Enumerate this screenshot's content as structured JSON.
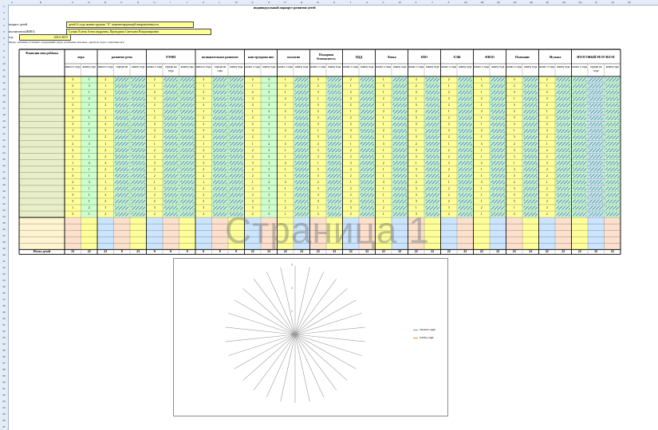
{
  "sheet": {
    "title": "индивидуальный маршрут развития детей",
    "group_label": "возраст детей",
    "group_value": "детей 4 года жизни группы \"А\" компенсирующей направленности",
    "teacher_label": "воспитатель(ФИО)",
    "teacher_value": "Сушко Елена Александровна, Прокудина Светлана Владимировна",
    "year_label": "год",
    "year_value": "2014-2015",
    "note": "Инды: значения условных сокращений: игры, различные игровые, одной из задач, сюжетные игр",
    "name_col_header": "Фамилия имя ребёнка",
    "total_label": "Итого детей",
    "watermark": "Страница 1"
  },
  "columns": [
    "A",
    "B",
    "C",
    "D",
    "E",
    "F",
    "G",
    "H",
    "I",
    "J",
    "K",
    "L",
    "M",
    "N",
    "O",
    "P",
    "Q",
    "R",
    "S",
    "T",
    "U",
    "V",
    "W",
    "X",
    "Y",
    "Z",
    "AA",
    "AB",
    "AC",
    "AD",
    "AE",
    "AF",
    "AG",
    "AH",
    "AI",
    "AJ",
    "AK"
  ],
  "rows": [
    "1",
    "2",
    "3",
    "4",
    "5",
    "6",
    "7",
    "8",
    "9",
    "10",
    "11",
    "12",
    "13",
    "14",
    "15",
    "16",
    "17",
    "18",
    "19",
    "20",
    "21",
    "22",
    "23",
    "24",
    "25",
    "26",
    "27",
    "28",
    "29",
    "30",
    "31",
    "32",
    "33",
    "34",
    "35",
    "36",
    "37",
    "38",
    "39",
    "40",
    "41",
    "42",
    "43",
    "44",
    "45",
    "46",
    "47",
    "48",
    "49",
    "50",
    "51",
    "52",
    "53",
    "54",
    "55",
    "56",
    "57",
    "58",
    "59",
    "60",
    "61",
    "62",
    "63",
    "64",
    "65",
    "66",
    "67"
  ],
  "groups": [
    {
      "label": "игра",
      "subs": [
        "начал о года",
        "конец года"
      ]
    },
    {
      "label": "развитие речи",
      "subs": [
        "начал о года",
        "середи на",
        "конец года"
      ]
    },
    {
      "label": "РЭМП",
      "subs": [
        "начал о года",
        "середи на года",
        "конец года"
      ]
    },
    {
      "label": "познавательное развитие",
      "subs": [
        "начал о года",
        "середи на года",
        "конец года"
      ]
    },
    {
      "label": "конструирова ние",
      "subs": [
        "начал о года",
        "конец года"
      ]
    },
    {
      "label": "экология",
      "subs": [
        "начал о года",
        "конец года"
      ]
    },
    {
      "label": "Пожарная безопасность",
      "subs": [
        "начал о года",
        "конец года"
      ]
    },
    {
      "label": "ПДД",
      "subs": [
        "начал о года",
        "конец года"
      ]
    },
    {
      "label": "Лепка",
      "subs": [
        "начал о года",
        "конец года"
      ]
    },
    {
      "label": "ИЗО",
      "subs": [
        "начал о года",
        "конец года"
      ]
    },
    {
      "label": "ХЭЖ",
      "subs": [
        "начал о года",
        "конец года"
      ]
    },
    {
      "label": "ФИЗО",
      "subs": [
        "начал о года",
        "конец года"
      ]
    },
    {
      "label": "Плавание",
      "subs": [
        "начал о года",
        "конец года"
      ]
    },
    {
      "label": "Музыка",
      "subs": [
        "начал о года",
        "конец года"
      ]
    },
    {
      "label": "ИТОГОВЫЙ РЕЗУЛЬТАТ",
      "subs": [
        "начал о года",
        "середи на года",
        "конец года"
      ]
    }
  ],
  "child_rows": [
    "11",
    "12",
    "13",
    "14",
    "15",
    "16",
    "17",
    "18",
    "19",
    "20",
    "21",
    "22",
    "23",
    "24",
    "25",
    "26",
    "27",
    "28",
    "29",
    "30",
    "31",
    "32"
  ],
  "totals": [
    "22",
    "22",
    "22",
    "0",
    "22",
    "0",
    "0",
    "0",
    "0",
    "0",
    "0",
    "22",
    "22",
    "22",
    "22",
    "22",
    "22",
    "22",
    "22",
    "22",
    "22",
    "22",
    "22",
    "22",
    "22",
    "22",
    "22",
    "22",
    "22",
    "22",
    "22",
    "22",
    "22",
    "22",
    "0",
    "0",
    "0"
  ],
  "colors": {
    "yellow": "#ffff99",
    "green": "#ccffcc",
    "blue": "#cce5ff",
    "peach": "#fde0cc",
    "hatch_green": "#2e8b57",
    "name_col": "#e8eec8"
  },
  "chart_data": {
    "type": "radar",
    "spokes": 30,
    "ylim": [
      0,
      3
    ],
    "series": [
      {
        "name": "начало года",
        "color": "#5b9bd5"
      },
      {
        "name": "конец года",
        "color": "#ed7d31"
      }
    ]
  }
}
